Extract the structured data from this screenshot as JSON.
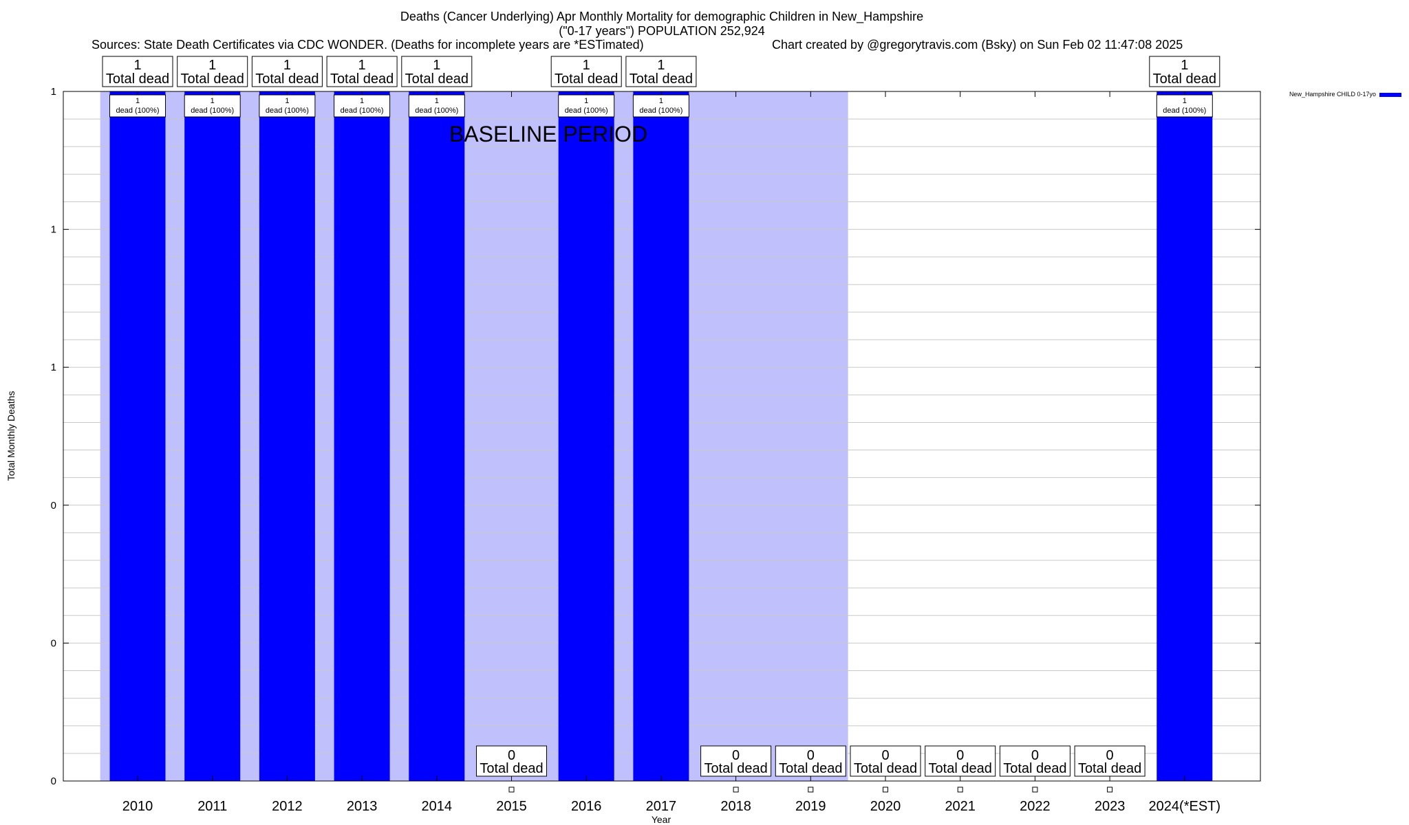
{
  "header": {
    "title_line1": "Deaths (Cancer Underlying) Apr Monthly Mortality for demographic Children in New_Hampshire",
    "title_line2": "(\"0-17 years\") POPULATION 252,924",
    "sources": "Sources: State Death Certificates via CDC WONDER. (Deaths for incomplete years are *ESTimated)",
    "credit": "Chart created by @gregorytravis.com (Bsky) on Sun Feb 02 11:47:08 2025"
  },
  "chart_data": {
    "type": "bar",
    "categories": [
      "2010",
      "2011",
      "2012",
      "2013",
      "2014",
      "2015",
      "2016",
      "2017",
      "2018",
      "2019",
      "2020",
      "2021",
      "2022",
      "2023",
      "2024(*EST)"
    ],
    "series": [
      {
        "name": "New_Hampshire CHILD 0-17yo",
        "values": [
          1,
          1,
          1,
          1,
          1,
          0,
          1,
          1,
          0,
          0,
          0,
          0,
          0,
          0,
          1
        ]
      }
    ],
    "xlabel": "Year",
    "ylabel": "Total Monthly Deaths",
    "ylim": [
      0,
      1
    ],
    "y_tick_labels": [
      "0",
      "0",
      "0",
      "1",
      "1",
      "1"
    ],
    "total_label_suffix": "Total dead",
    "bar_label_suffix": "dead (100%)",
    "baseline_label": "BASELINE PERIOD",
    "baseline_period": [
      "2010",
      "2019"
    ],
    "grid": true,
    "legend_position": "top-right",
    "colors": {
      "bar": "#0000ff",
      "baseline": "#c0c0fc",
      "grid": "#c8c8c8"
    }
  }
}
